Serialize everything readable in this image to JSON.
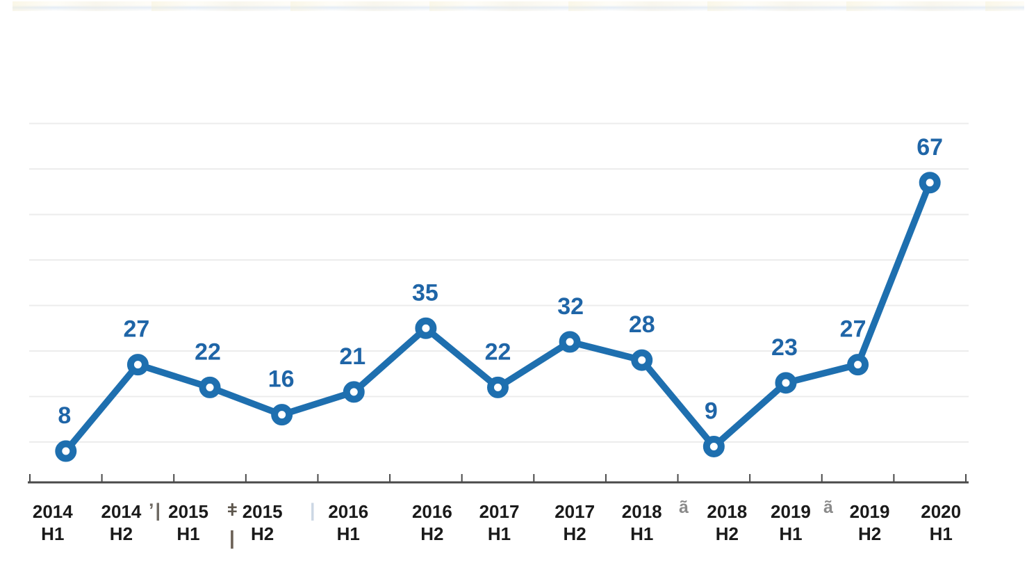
{
  "chart_data": {
    "type": "line",
    "categories": [
      "2014 H1",
      "2014 H2",
      "2015 H1",
      "2015 H2",
      "2016 H1",
      "2016 H2",
      "2017 H1",
      "2017 H2",
      "2018 H1",
      "2018 H2",
      "2019 H1",
      "2019 H2",
      "2020 H1"
    ],
    "values": [
      8,
      27,
      22,
      16,
      21,
      35,
      22,
      32,
      28,
      9,
      23,
      27,
      67
    ],
    "data_label_texts": [
      "8",
      "27",
      "22",
      "16",
      "21",
      "35",
      "22",
      "32",
      "28",
      "9",
      "23",
      "27",
      "67"
    ],
    "xlabel": "",
    "ylabel": "",
    "ylim": [
      0,
      80
    ],
    "gridline_step": 10,
    "grid": "horizontal-only, no y-axis tick labels",
    "legend": "none",
    "data_labels": "above-points",
    "marker": "open-circle",
    "colors": {
      "line": "#1E6FAF",
      "marker_ring": "#1E6FAF",
      "marker_fill": "#FFFFFF",
      "data_label": "#1F65A7",
      "axis_line": "#4A4A4A",
      "tick": "#4A4A4A",
      "gridline": "#ECECEC",
      "category_label": "#1A1A1A"
    }
  },
  "artifacts": {
    "g0": "’|",
    "g1": "ǂ",
    "g2": "|",
    "g3": "ã",
    "g4": "ã",
    "g5": "|"
  }
}
